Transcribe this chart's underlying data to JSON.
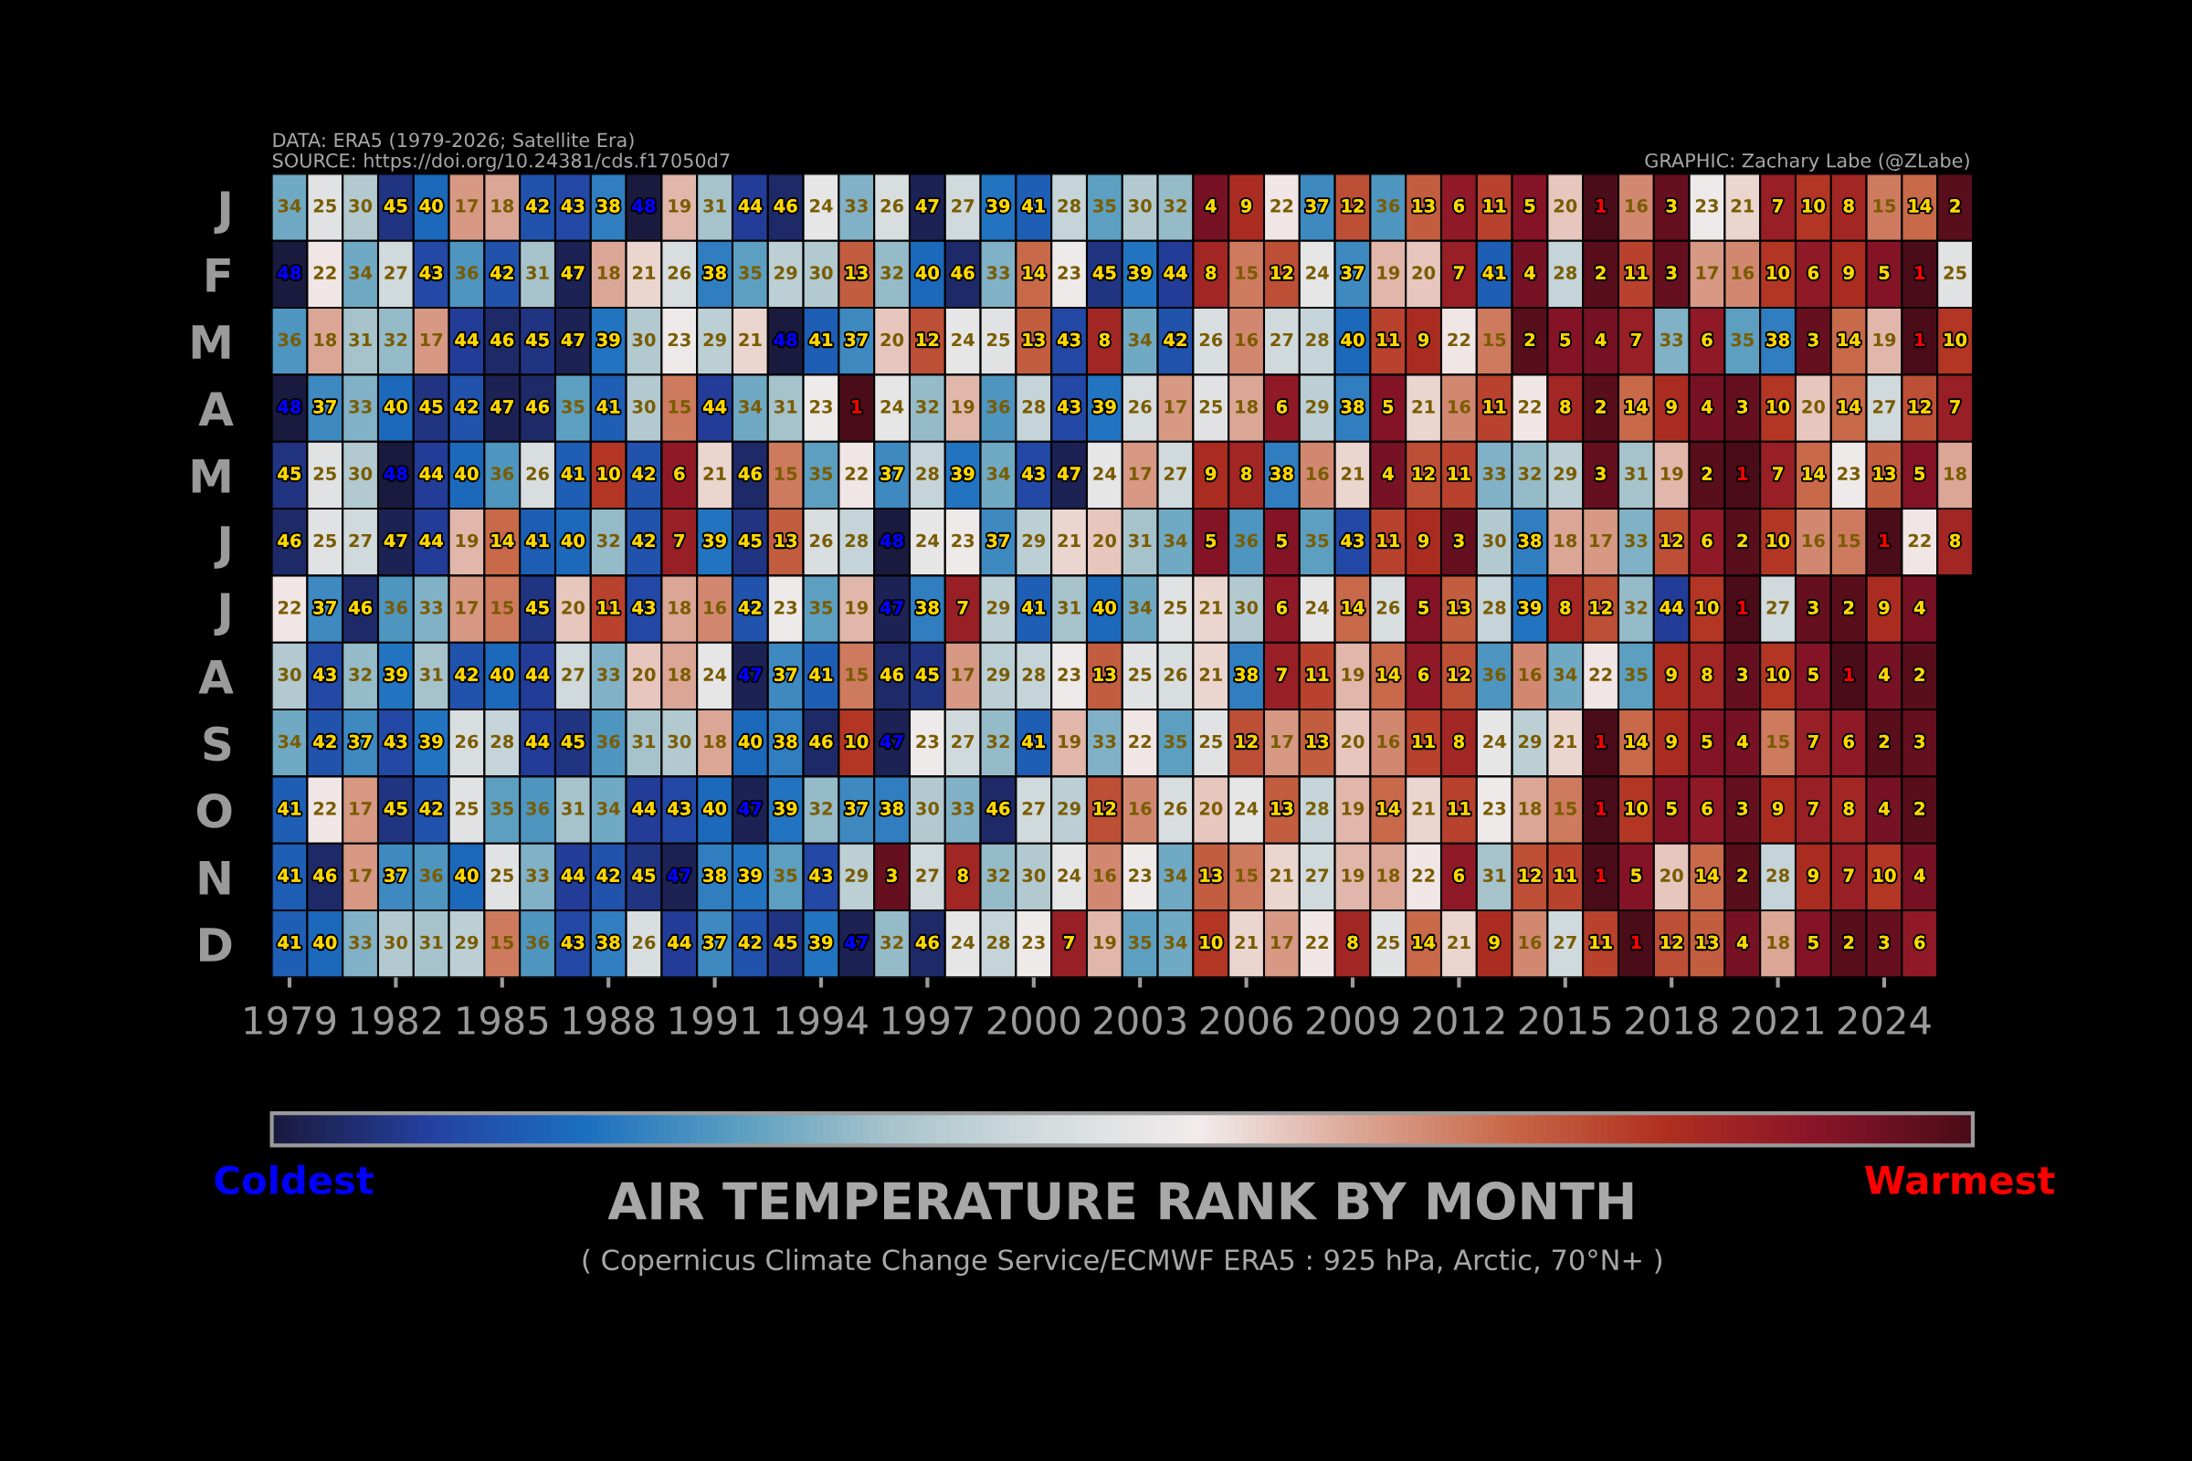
{
  "chart_data": {
    "type": "heatmap",
    "title": "AIR TEMPERATURE RANK BY MONTH",
    "subtitle": "( Copernicus Climate Change Service/ECMWF ERA5 : 925 hPa, Arctic, 70°N+ )",
    "annotations": [
      "DATA: ERA5 (1979-2026; Satellite Era)",
      "SOURCE: https://doi.org/10.24381/cds.f17050d7",
      "GRAPHIC: Zachary Labe (@ZLabe)",
      "Coldest",
      "Warmest"
    ],
    "categories": [
      "1979",
      null,
      null,
      "1982",
      null,
      null,
      "1985",
      null,
      null,
      "1988",
      null,
      null,
      "1991",
      null,
      null,
      "1994",
      null,
      null,
      "1997",
      null,
      null,
      "2000",
      null,
      null,
      "2003",
      null,
      null,
      "2006",
      null,
      null,
      "2009",
      null,
      null,
      "2012",
      null,
      null,
      "2015",
      null,
      null,
      "2018",
      null,
      null,
      "2021",
      null,
      null,
      "2024",
      null,
      null
    ],
    "y_categories": [
      "J",
      "F",
      "M",
      "A",
      "M",
      "J",
      "J",
      "A",
      "S",
      "O",
      "N",
      "D"
    ],
    "cells": [
      [
        34,
        25,
        30,
        45,
        40,
        17,
        18,
        42,
        43,
        38,
        48,
        19,
        31,
        44,
        46,
        24,
        33,
        26,
        47,
        27,
        39,
        41,
        28,
        35,
        30,
        32,
        4,
        9,
        22,
        37,
        12,
        36,
        13,
        6,
        11,
        5,
        20,
        1,
        16,
        3,
        23,
        21,
        7,
        10,
        8,
        15,
        14,
        2
      ],
      [
        48,
        22,
        34,
        27,
        43,
        36,
        42,
        31,
        47,
        18,
        21,
        26,
        38,
        35,
        29,
        30,
        13,
        32,
        40,
        46,
        33,
        14,
        23,
        45,
        39,
        44,
        8,
        15,
        12,
        24,
        37,
        19,
        20,
        7,
        41,
        4,
        28,
        2,
        11,
        3,
        17,
        16,
        10,
        6,
        9,
        5,
        1,
        25
      ],
      [
        36,
        18,
        31,
        32,
        17,
        44,
        46,
        45,
        47,
        39,
        30,
        23,
        29,
        21,
        48,
        41,
        37,
        20,
        12,
        24,
        25,
        13,
        43,
        8,
        34,
        42,
        26,
        16,
        27,
        28,
        40,
        11,
        9,
        22,
        15,
        2,
        5,
        4,
        7,
        33,
        6,
        35,
        38,
        3,
        14,
        19,
        1,
        10
      ],
      [
        48,
        37,
        33,
        40,
        45,
        42,
        47,
        46,
        35,
        41,
        30,
        15,
        44,
        34,
        31,
        23,
        1,
        24,
        32,
        19,
        36,
        28,
        43,
        39,
        26,
        17,
        25,
        18,
        6,
        29,
        38,
        5,
        21,
        16,
        11,
        22,
        8,
        2,
        14,
        9,
        4,
        3,
        10,
        20,
        14,
        27,
        12,
        7
      ],
      [
        45,
        25,
        30,
        48,
        44,
        40,
        36,
        26,
        41,
        10,
        42,
        6,
        21,
        46,
        15,
        35,
        22,
        37,
        28,
        39,
        34,
        43,
        47,
        24,
        17,
        27,
        9,
        8,
        38,
        16,
        21,
        4,
        12,
        11,
        33,
        32,
        29,
        3,
        31,
        19,
        2,
        1,
        7,
        14,
        23,
        13,
        5,
        18
      ],
      [
        46,
        25,
        27,
        47,
        44,
        19,
        14,
        41,
        40,
        32,
        42,
        7,
        39,
        45,
        13,
        26,
        28,
        48,
        24,
        23,
        37,
        29,
        21,
        20,
        31,
        34,
        5,
        36,
        5,
        35,
        43,
        11,
        9,
        3,
        30,
        38,
        18,
        17,
        33,
        12,
        6,
        2,
        10,
        16,
        15,
        1,
        22,
        8
      ],
      [
        22,
        37,
        46,
        36,
        33,
        17,
        15,
        45,
        20,
        11,
        43,
        18,
        16,
        42,
        23,
        35,
        19,
        47,
        38,
        7,
        29,
        41,
        31,
        40,
        34,
        25,
        21,
        30,
        6,
        24,
        14,
        26,
        5,
        13,
        28,
        39,
        8,
        12,
        32,
        44,
        10,
        1,
        27,
        3,
        2,
        9,
        4,
        null
      ],
      [
        30,
        43,
        32,
        39,
        31,
        42,
        40,
        44,
        27,
        33,
        20,
        18,
        24,
        47,
        37,
        41,
        15,
        46,
        45,
        17,
        29,
        28,
        23,
        13,
        25,
        26,
        21,
        38,
        7,
        11,
        19,
        14,
        6,
        12,
        36,
        16,
        34,
        22,
        35,
        9,
        8,
        3,
        10,
        5,
        1,
        4,
        2,
        null
      ],
      [
        34,
        42,
        37,
        43,
        39,
        26,
        28,
        44,
        45,
        36,
        31,
        30,
        18,
        40,
        38,
        46,
        10,
        47,
        23,
        27,
        32,
        41,
        19,
        33,
        22,
        35,
        25,
        12,
        17,
        13,
        20,
        16,
        11,
        8,
        24,
        29,
        21,
        1,
        14,
        9,
        5,
        4,
        15,
        7,
        6,
        2,
        3,
        null
      ],
      [
        41,
        22,
        17,
        45,
        42,
        25,
        35,
        36,
        31,
        34,
        44,
        43,
        40,
        47,
        39,
        32,
        37,
        38,
        30,
        33,
        46,
        27,
        29,
        12,
        16,
        26,
        20,
        24,
        13,
        28,
        19,
        14,
        21,
        11,
        23,
        18,
        15,
        1,
        10,
        5,
        6,
        3,
        9,
        7,
        8,
        4,
        2,
        null
      ],
      [
        41,
        46,
        17,
        37,
        36,
        40,
        25,
        33,
        44,
        42,
        45,
        47,
        38,
        39,
        35,
        43,
        29,
        3,
        27,
        8,
        32,
        30,
        24,
        16,
        23,
        34,
        13,
        15,
        21,
        27,
        19,
        18,
        22,
        6,
        31,
        12,
        11,
        1,
        5,
        20,
        14,
        2,
        28,
        9,
        7,
        10,
        4,
        null
      ],
      [
        41,
        40,
        33,
        30,
        31,
        29,
        15,
        36,
        43,
        38,
        26,
        44,
        37,
        42,
        45,
        39,
        47,
        32,
        46,
        24,
        28,
        23,
        7,
        19,
        35,
        34,
        10,
        21,
        17,
        22,
        8,
        25,
        14,
        21,
        9,
        16,
        27,
        11,
        1,
        12,
        13,
        4,
        18,
        5,
        2,
        3,
        6,
        null
      ]
    ],
    "data_labels": true,
    "grid": false
  }
}
